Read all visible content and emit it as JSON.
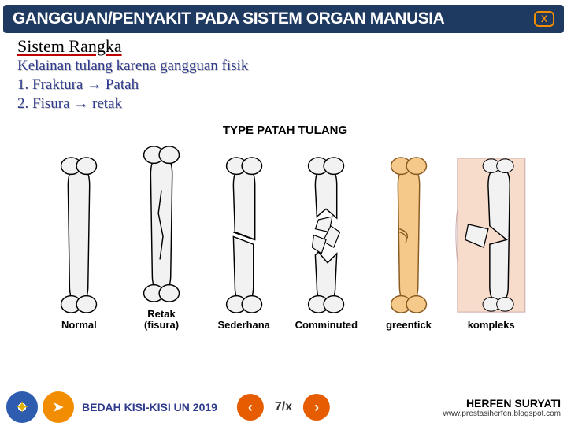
{
  "header": {
    "title": "GANGGUAN/PENYAKIT PADA SISTEM ORGAN MANUSIA",
    "close_label": "X",
    "background": "#1f3a60",
    "accent": "#f28c00"
  },
  "content": {
    "section_title": "Sistem Rangka",
    "line1": "Kelainan tulang karena gangguan fisik",
    "line2": "1. Fraktura → Patah",
    "line3": "2. Fisura → retak",
    "text_color": "#2e3a8c"
  },
  "figure": {
    "title": "TYPE PATAH TULANG",
    "items": [
      {
        "label": "Normal",
        "kind": "normal",
        "fill": "#f2f2f2",
        "stroke": "#000000"
      },
      {
        "label": "Retak\n(fisura)",
        "kind": "fissure",
        "fill": "#f2f2f2",
        "stroke": "#000000"
      },
      {
        "label": "Sederhana",
        "kind": "simple",
        "fill": "#f2f2f2",
        "stroke": "#000000"
      },
      {
        "label": "Comminuted",
        "kind": "comminuted",
        "fill": "#f2f2f2",
        "stroke": "#000000"
      },
      {
        "label": "greentick",
        "kind": "greenstick",
        "fill": "#f4c98a",
        "stroke": "#8a5a20"
      },
      {
        "label": "kompleks",
        "kind": "compound",
        "fill": "#f2f2f2",
        "stroke": "#000000"
      }
    ]
  },
  "footer": {
    "left_text": "BEDAH KISI-KISI UN 2019",
    "page": "7/x",
    "author": "HERFEN SURYATI",
    "url": "www.prestasiherfen.blogspot.com",
    "nav_color": "#e65c00"
  }
}
